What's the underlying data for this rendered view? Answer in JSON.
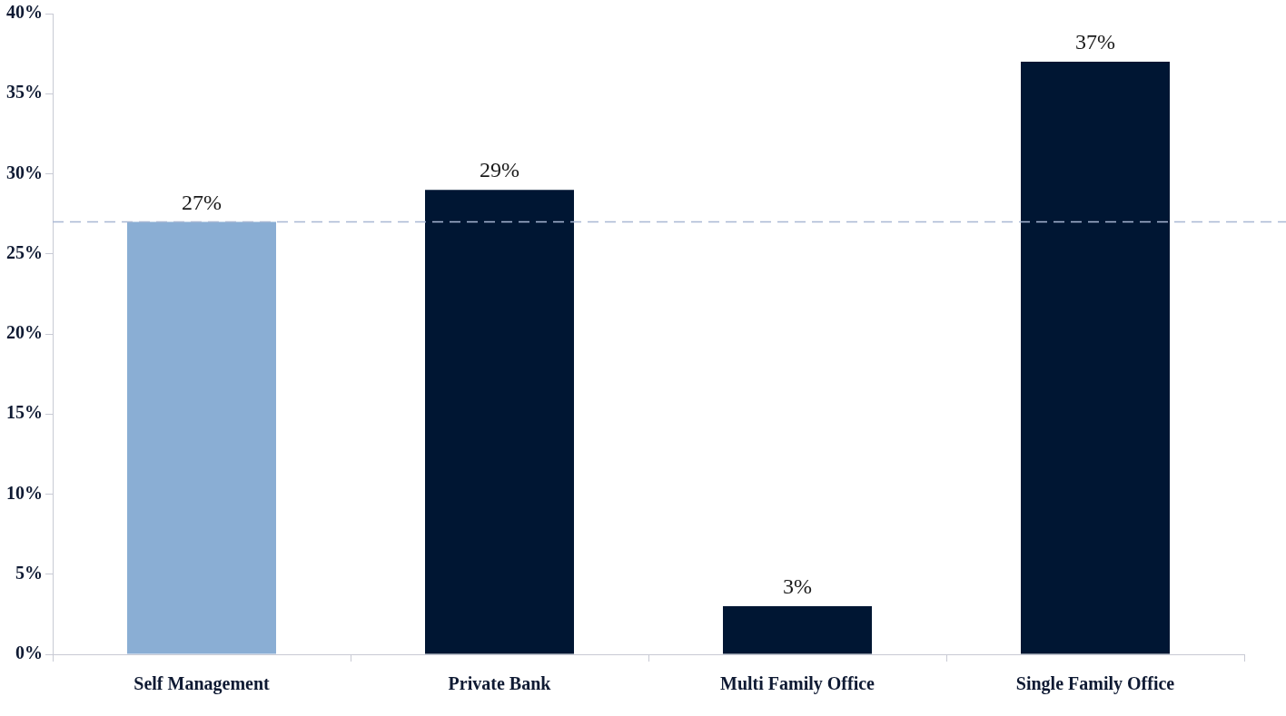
{
  "chart_data": {
    "type": "bar",
    "categories": [
      "Self Management",
      "Private Bank",
      "Multi Family Office",
      "Single Family Office"
    ],
    "values": [
      27,
      29,
      3,
      37
    ],
    "colors": [
      "#8aaed4",
      "#001633",
      "#001633",
      "#001633"
    ],
    "value_labels": [
      "27%",
      "29%",
      "3%",
      "37%"
    ],
    "ylim": [
      0,
      40
    ],
    "yticks": [
      {
        "value": 0,
        "label": "0%"
      },
      {
        "value": 5,
        "label": "5%"
      },
      {
        "value": 10,
        "label": "10%"
      },
      {
        "value": 15,
        "label": "15%"
      },
      {
        "value": 20,
        "label": "20%"
      },
      {
        "value": 25,
        "label": "25%"
      },
      {
        "value": 30,
        "label": "30%"
      },
      {
        "value": 35,
        "label": "35%"
      },
      {
        "value": 40,
        "label": "40%"
      }
    ],
    "ref_lines": [
      {
        "axis": "y",
        "value": 27,
        "color": "#a9b8d4",
        "line_style": "dashed"
      }
    ],
    "legend": false
  }
}
